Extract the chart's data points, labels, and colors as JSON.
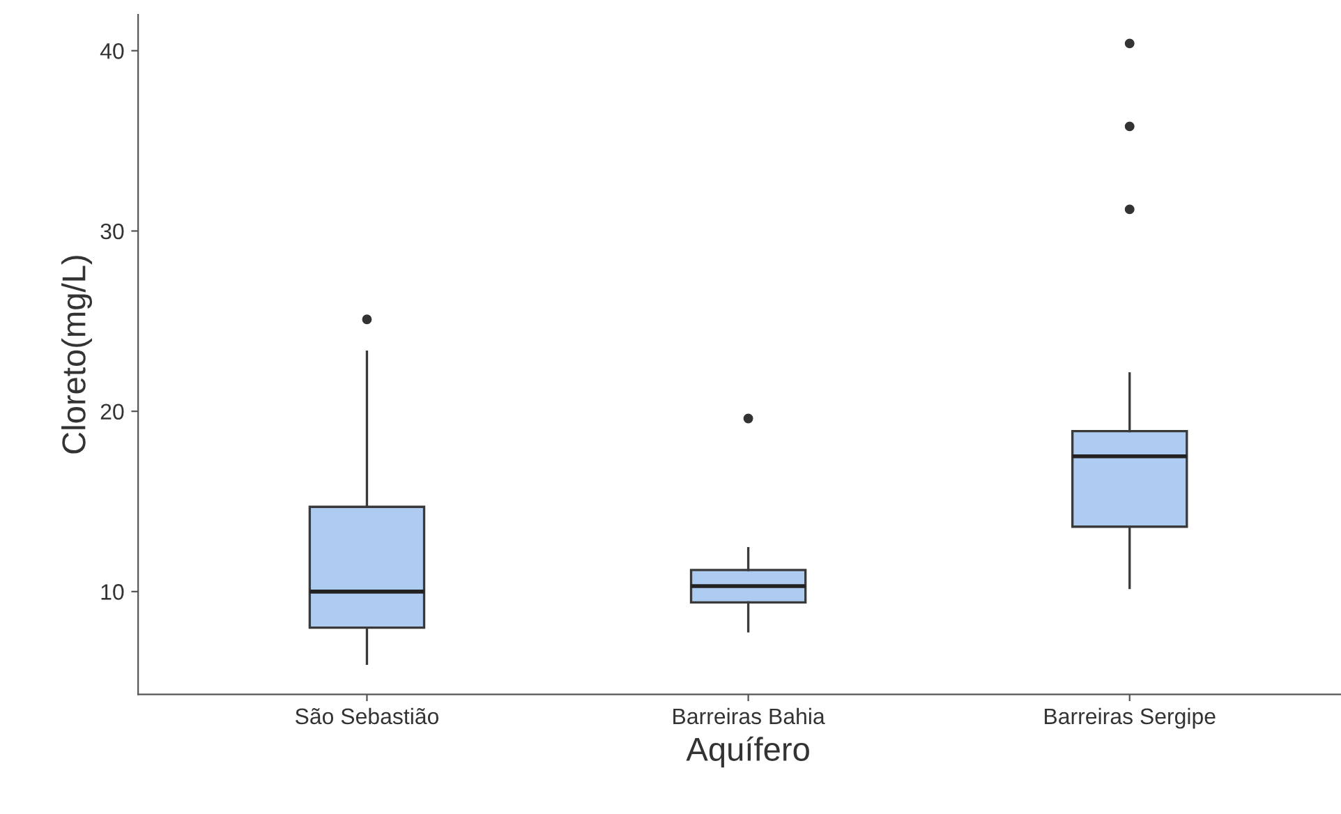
{
  "chart_data": {
    "type": "box",
    "xlabel": "Aquífero",
    "ylabel": "Cloreto(mg/L)",
    "categories": [
      "São Sebastião",
      "Barreiras Bahia",
      "Barreiras Sergipe"
    ],
    "boxes": [
      {
        "low": 6.0,
        "q1": 8.0,
        "median": 10.0,
        "q3": 14.7,
        "high": 23.3,
        "outliers": [
          25.1
        ]
      },
      {
        "low": 7.8,
        "q1": 9.4,
        "median": 10.3,
        "q3": 11.2,
        "high": 12.4,
        "outliers": [
          19.6
        ]
      },
      {
        "low": 10.2,
        "q1": 13.6,
        "median": 17.5,
        "q3": 18.9,
        "high": 22.1,
        "outliers": [
          31.2,
          35.8,
          40.4
        ]
      }
    ],
    "color": "#aecbf2",
    "ylim": [
      4.3,
      42
    ],
    "yticks": [
      10,
      20,
      30,
      40
    ],
    "grid": false
  }
}
